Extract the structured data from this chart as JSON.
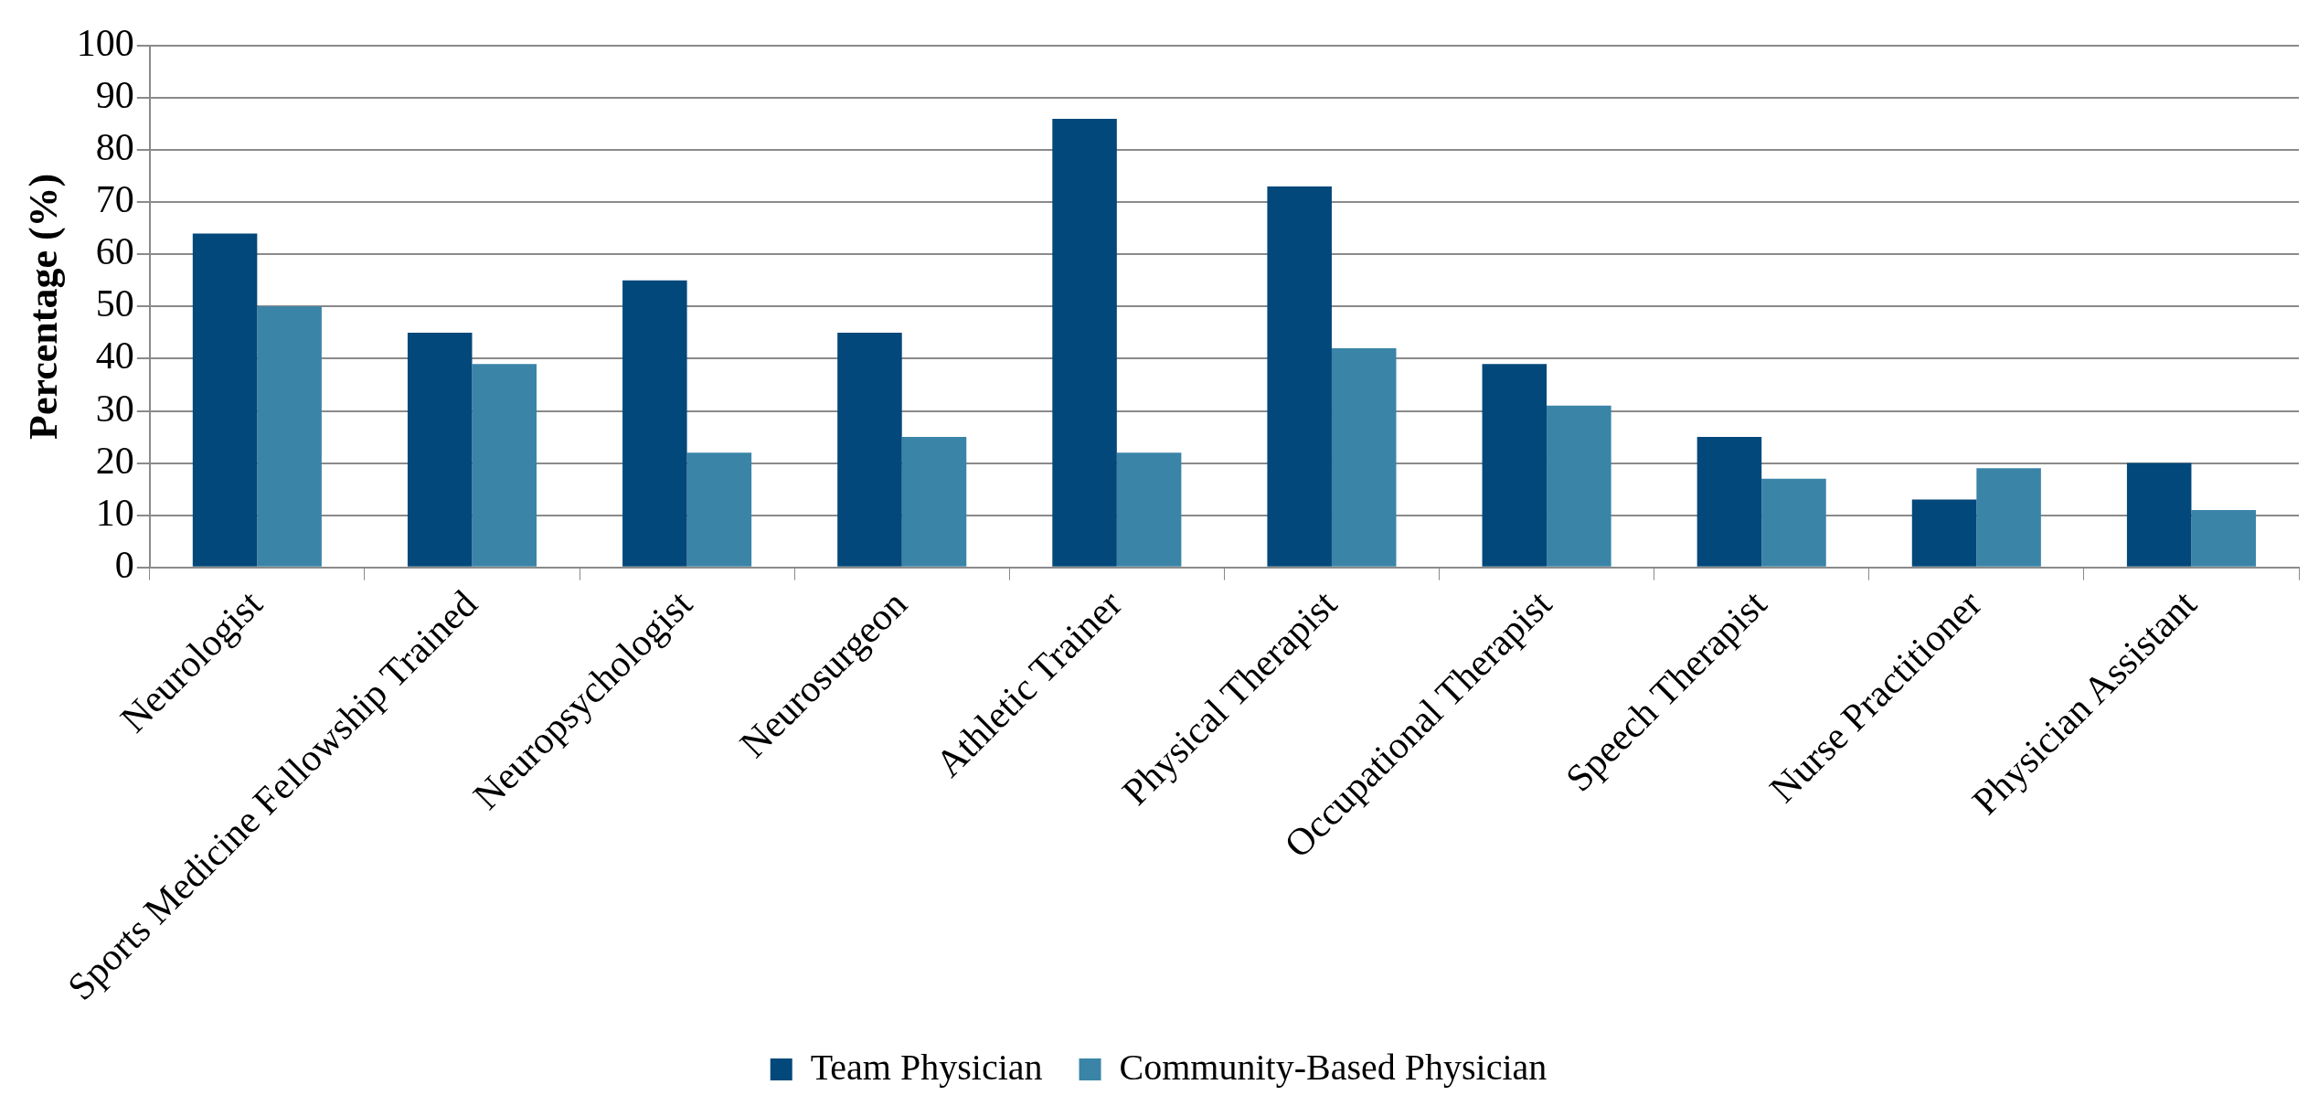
{
  "chart_data": {
    "type": "bar",
    "ylabel": "Percentage (%)",
    "categories": [
      "Neurologist",
      "Sports Medicine Fellowship Trained",
      "Neuropsychologist",
      "Neurosurgeon",
      "Athletic Trainer",
      "Physical Therapist",
      "Occupational Therapist",
      "Speech Therapist",
      "Nurse Practitioner",
      "Physician Assistant"
    ],
    "series": [
      {
        "name": "Team Physician",
        "color": "#03487a",
        "values": [
          64,
          45,
          55,
          45,
          86,
          73,
          39,
          25,
          13,
          20
        ]
      },
      {
        "name": "Community-Based Physician",
        "color": "#3a84a8",
        "values": [
          50,
          39,
          22,
          25,
          22,
          42,
          31,
          17,
          19,
          11
        ]
      }
    ],
    "ylim": [
      0,
      100
    ],
    "yticks": [
      0,
      10,
      20,
      30,
      40,
      50,
      60,
      70,
      80,
      90,
      100
    ],
    "grid": "y",
    "legend": "bottom"
  }
}
